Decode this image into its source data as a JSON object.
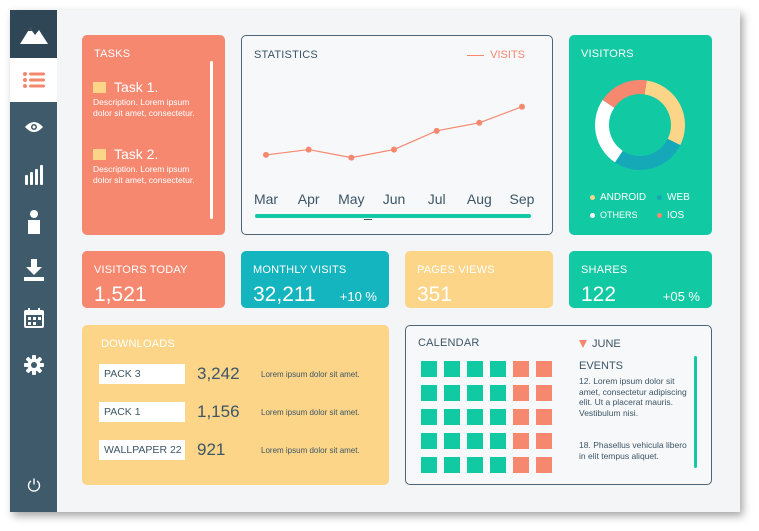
{
  "nav": [
    "home",
    "list",
    "view",
    "stats",
    "user",
    "download",
    "calendar",
    "settings",
    "power"
  ],
  "tasks": {
    "title": "TASKS",
    "items": [
      {
        "title": "Task 1.",
        "desc": "Description. Lorem ipsum dolor sit amet, consectetur."
      },
      {
        "title": "Task 2.",
        "desc": "Description. Lorem ipsum dolor sit amet, consectetur."
      }
    ]
  },
  "statistics": {
    "title": "STATISTICS",
    "legend": "VISITS"
  },
  "chart_data": {
    "type": "line",
    "categories": [
      "Mar",
      "Apr",
      "May",
      "Jun",
      "Jul",
      "Aug",
      "Sep"
    ],
    "series": [
      {
        "name": "VISITS",
        "values": [
          3,
          4,
          2.5,
          4,
          7.5,
          9,
          12
        ]
      }
    ],
    "ylim": [
      0,
      14
    ],
    "color": "#f68870",
    "grid": false
  },
  "visitors": {
    "title": "VISITORS",
    "donut": [
      {
        "label": "ANDROID",
        "value": 30,
        "color": "#fcd589"
      },
      {
        "label": "WEB",
        "value": 27,
        "color": "#14a8b8"
      },
      {
        "label": "OTHERS",
        "value": 25,
        "color": "#ffffff"
      },
      {
        "label": "IOS",
        "value": 18,
        "color": "#f68870"
      }
    ],
    "legend": {
      "android": "ANDROID",
      "web": "WEB",
      "others": "OTHERS",
      "ios": "IOS"
    }
  },
  "kpis": {
    "visitors_today": {
      "title": "VISITORS TODAY",
      "value": "1,521"
    },
    "monthly_visits": {
      "title": "MONTHLY VISITS",
      "value": "32,211",
      "change": "+10 %"
    },
    "pages_views": {
      "title": "PAGES VIEWS",
      "value": "351"
    },
    "shares": {
      "title": "SHARES",
      "value": "122",
      "change": "+05 %"
    }
  },
  "downloads": {
    "title": "DOWNLOADS",
    "rows": [
      {
        "name": "PACK 3",
        "value": "3,242",
        "text": "Lorem ipsum dolor sit amet."
      },
      {
        "name": "PACK 1",
        "value": "1,156",
        "text": "Lorem ipsum dolor sit amet."
      },
      {
        "name": "WALLPAPER 22",
        "value": "921",
        "text": "Lorem ipsum dolor sit amet."
      }
    ]
  },
  "calendar": {
    "title": "CALENDAR",
    "month": "JUNE",
    "events_title": "EVENTS",
    "events": [
      {
        "day": "12.",
        "text": "Lorem ipsum dolor sit amet, consectetur adipiscing elit. Ut a placerat mauris. Vestibulum nisi."
      },
      {
        "day": "18.",
        "text": "Phasellus vehicula libero in elit tempus aliquet."
      }
    ],
    "grid": [
      [
        "g",
        "g",
        "g",
        "g",
        "r",
        "r"
      ],
      [
        "g",
        "g",
        "g",
        "g",
        "r",
        "r"
      ],
      [
        "g",
        "g",
        "g",
        "g",
        "r",
        "r"
      ],
      [
        "g",
        "g",
        "g",
        "g",
        "r",
        "r"
      ],
      [
        "g",
        "g",
        "g",
        "g",
        "r",
        "r"
      ]
    ],
    "colors": {
      "g": "#11c9a3",
      "r": "#f68870"
    }
  },
  "colors": {
    "salmon": "#f68870",
    "teal": "#14b5bf",
    "yellow": "#fcd589",
    "green": "#11c9a3",
    "sidebar": "#3f5a6b"
  }
}
